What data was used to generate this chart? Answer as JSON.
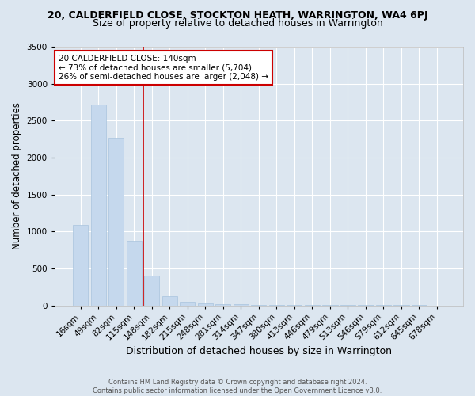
{
  "title_line1": "20, CALDERFIELD CLOSE, STOCKTON HEATH, WARRINGTON, WA4 6PJ",
  "title_line2": "Size of property relative to detached houses in Warrington",
  "xlabel": "Distribution of detached houses by size in Warrington",
  "ylabel": "Number of detached properties",
  "categories": [
    "16sqm",
    "49sqm",
    "82sqm",
    "115sqm",
    "148sqm",
    "182sqm",
    "215sqm",
    "248sqm",
    "281sqm",
    "314sqm",
    "347sqm",
    "380sqm",
    "413sqm",
    "446sqm",
    "479sqm",
    "513sqm",
    "546sqm",
    "579sqm",
    "612sqm",
    "645sqm",
    "678sqm"
  ],
  "values": [
    1090,
    2720,
    2270,
    870,
    400,
    125,
    50,
    30,
    20,
    12,
    8,
    5,
    4,
    3,
    2,
    2,
    1,
    1,
    1,
    1,
    0
  ],
  "bar_color": "#c5d8ed",
  "bar_edgecolor": "#a8c4de",
  "vline_color": "#cc0000",
  "annotation_text": "20 CALDERFIELD CLOSE: 140sqm\n← 73% of detached houses are smaller (5,704)\n26% of semi-detached houses are larger (2,048) →",
  "annotation_box_color": "#ffffff",
  "annotation_box_edgecolor": "#cc0000",
  "ylim": [
    0,
    3500
  ],
  "yticks": [
    0,
    500,
    1000,
    1500,
    2000,
    2500,
    3000,
    3500
  ],
  "background_color": "#dce6f0",
  "plot_background_color": "#dce6f0",
  "footer_line1": "Contains HM Land Registry data © Crown copyright and database right 2024.",
  "footer_line2": "Contains public sector information licensed under the Open Government Licence v3.0.",
  "title_fontsize": 9,
  "subtitle_fontsize": 9,
  "xlabel_fontsize": 9,
  "ylabel_fontsize": 8.5,
  "tick_fontsize": 7.5,
  "annotation_fontsize": 7.5
}
